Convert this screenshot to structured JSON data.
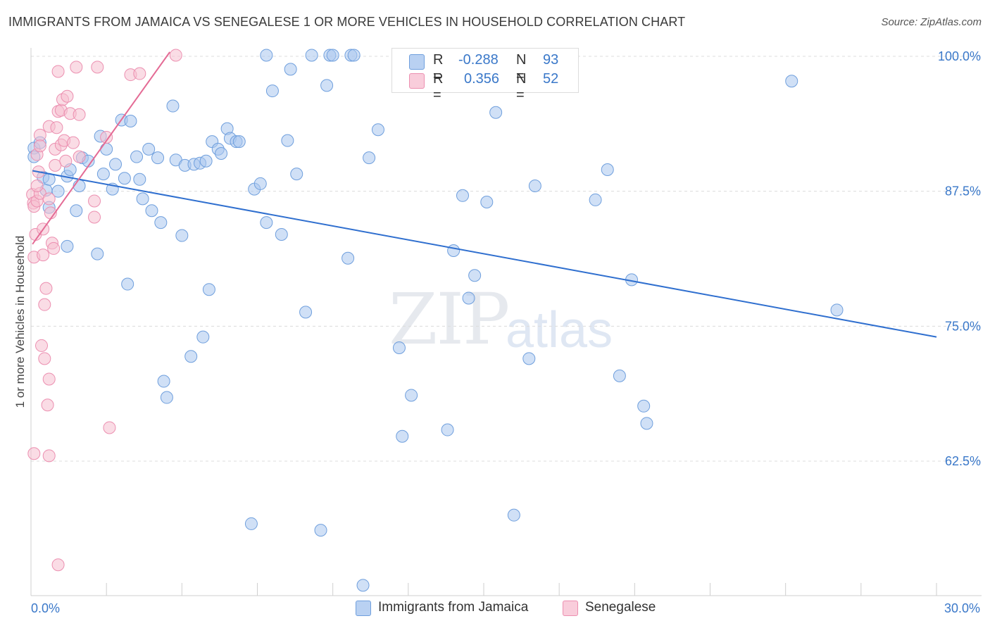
{
  "title": "IMMIGRANTS FROM JAMAICA VS SENEGALESE 1 OR MORE VEHICLES IN HOUSEHOLD CORRELATION CHART",
  "source": "Source: ZipAtlas.com",
  "watermark_zip": "ZIP",
  "watermark_atlas": "atlas",
  "legend": {
    "r_label": "R =",
    "n_label": "N =",
    "series1": {
      "r": "-0.288",
      "n": "93"
    },
    "series2": {
      "r": "0.356",
      "n": "52"
    }
  },
  "colors": {
    "blue_fill": "#a9c6ef",
    "blue_stroke": "#6f9fdd",
    "blue_line": "#2f6fcf",
    "pink_fill": "#f6bfd0",
    "pink_stroke": "#ec8fb0",
    "pink_line": "#e46b95",
    "tick_label": "#3a78c9",
    "grid": "#dcdcdc"
  },
  "chart_data": {
    "type": "scatter",
    "title": "IMMIGRANTS FROM JAMAICA VS SENEGALESE 1 OR MORE VEHICLES IN HOUSEHOLD CORRELATION CHART",
    "xlabel": "",
    "ylabel": "1 or more Vehicles in Household",
    "xlim": [
      0,
      30
    ],
    "ylim": [
      50,
      101.2
    ],
    "x_tick_labels": [
      "0.0%",
      "30.0%"
    ],
    "y_ticks": [
      62.5,
      75.0,
      87.5,
      100.0
    ],
    "y_tick_labels": [
      "62.5%",
      "75.0%",
      "87.5%",
      "100.0%"
    ],
    "grid": true,
    "series": [
      {
        "name": "Immigrants from Jamaica",
        "r": -0.288,
        "n": 93,
        "trend": {
          "x": [
            0.05,
            30.0
          ],
          "y": [
            89.4,
            74.0
          ]
        },
        "points": [
          [
            0.1,
            91.5
          ],
          [
            0.1,
            90.7
          ],
          [
            0.3,
            92.0
          ],
          [
            0.4,
            88.8
          ],
          [
            0.5,
            87.6
          ],
          [
            0.6,
            88.6
          ],
          [
            0.6,
            86.0
          ],
          [
            0.9,
            87.5
          ],
          [
            1.2,
            88.9
          ],
          [
            1.2,
            82.4
          ],
          [
            1.3,
            89.5
          ],
          [
            1.5,
            85.7
          ],
          [
            1.6,
            88.0
          ],
          [
            1.7,
            90.6
          ],
          [
            1.9,
            90.3
          ],
          [
            2.2,
            81.7
          ],
          [
            2.3,
            92.6
          ],
          [
            2.4,
            89.1
          ],
          [
            2.5,
            91.4
          ],
          [
            2.7,
            87.7
          ],
          [
            2.8,
            90.0
          ],
          [
            3.0,
            94.1
          ],
          [
            3.1,
            88.7
          ],
          [
            3.2,
            78.9
          ],
          [
            3.3,
            94.0
          ],
          [
            3.5,
            90.7
          ],
          [
            3.6,
            88.6
          ],
          [
            3.7,
            86.8
          ],
          [
            3.9,
            91.4
          ],
          [
            4.0,
            85.7
          ],
          [
            4.2,
            90.6
          ],
          [
            4.3,
            84.6
          ],
          [
            4.4,
            69.9
          ],
          [
            4.5,
            68.4
          ],
          [
            4.7,
            95.4
          ],
          [
            4.8,
            90.4
          ],
          [
            5.0,
            83.4
          ],
          [
            5.1,
            89.9
          ],
          [
            5.3,
            72.2
          ],
          [
            5.4,
            90.0
          ],
          [
            5.6,
            90.1
          ],
          [
            5.7,
            74.0
          ],
          [
            5.8,
            90.3
          ],
          [
            5.9,
            78.4
          ],
          [
            6.0,
            92.1
          ],
          [
            6.2,
            91.4
          ],
          [
            6.3,
            91.0
          ],
          [
            6.5,
            93.3
          ],
          [
            6.6,
            92.4
          ],
          [
            6.8,
            92.1
          ],
          [
            6.9,
            92.1
          ],
          [
            7.3,
            56.7
          ],
          [
            7.4,
            87.7
          ],
          [
            7.6,
            88.2
          ],
          [
            7.8,
            84.6
          ],
          [
            7.8,
            100.1
          ],
          [
            8.0,
            96.8
          ],
          [
            8.3,
            83.5
          ],
          [
            8.5,
            92.2
          ],
          [
            8.6,
            98.8
          ],
          [
            8.8,
            89.1
          ],
          [
            9.1,
            76.3
          ],
          [
            9.3,
            100.1
          ],
          [
            9.6,
            56.1
          ],
          [
            9.8,
            97.3
          ],
          [
            9.9,
            100.1
          ],
          [
            10.0,
            100.1
          ],
          [
            10.5,
            81.3
          ],
          [
            10.6,
            100.1
          ],
          [
            10.7,
            100.1
          ],
          [
            11.0,
            51.0
          ],
          [
            11.2,
            90.6
          ],
          [
            11.5,
            93.2
          ],
          [
            12.2,
            73.0
          ],
          [
            12.3,
            64.8
          ],
          [
            12.6,
            68.6
          ],
          [
            13.8,
            65.4
          ],
          [
            14.0,
            82.0
          ],
          [
            14.3,
            87.1
          ],
          [
            14.5,
            77.6
          ],
          [
            14.7,
            79.7
          ],
          [
            15.1,
            86.5
          ],
          [
            15.4,
            94.8
          ],
          [
            16.0,
            57.5
          ],
          [
            16.5,
            72.0
          ],
          [
            16.7,
            88.0
          ],
          [
            18.7,
            86.7
          ],
          [
            19.1,
            89.5
          ],
          [
            19.5,
            70.4
          ],
          [
            19.9,
            79.3
          ],
          [
            20.3,
            67.6
          ],
          [
            20.4,
            66.0
          ],
          [
            25.2,
            97.7
          ],
          [
            26.7,
            76.5
          ]
        ]
      },
      {
        "name": "Senegalese",
        "r": 0.356,
        "n": 52,
        "trend": {
          "x": [
            0.05,
            4.6
          ],
          "y": [
            82.6,
            100.4
          ]
        },
        "points": [
          [
            0.05,
            87.2
          ],
          [
            0.08,
            86.4
          ],
          [
            0.1,
            86.1
          ],
          [
            0.1,
            81.4
          ],
          [
            0.1,
            63.2
          ],
          [
            0.15,
            83.5
          ],
          [
            0.2,
            86.6
          ],
          [
            0.2,
            90.9
          ],
          [
            0.25,
            89.3
          ],
          [
            0.3,
            92.7
          ],
          [
            0.3,
            87.3
          ],
          [
            0.3,
            91.7
          ],
          [
            0.35,
            73.2
          ],
          [
            0.4,
            84.0
          ],
          [
            0.4,
            81.6
          ],
          [
            0.45,
            72.0
          ],
          [
            0.45,
            77.0
          ],
          [
            0.5,
            78.5
          ],
          [
            0.55,
            67.7
          ],
          [
            0.6,
            70.1
          ],
          [
            0.6,
            63.0
          ],
          [
            0.6,
            86.8
          ],
          [
            0.6,
            93.5
          ],
          [
            0.65,
            85.5
          ],
          [
            0.7,
            82.7
          ],
          [
            0.75,
            82.2
          ],
          [
            0.8,
            89.9
          ],
          [
            0.8,
            91.4
          ],
          [
            0.85,
            93.4
          ],
          [
            0.9,
            98.6
          ],
          [
            0.9,
            52.9
          ],
          [
            0.9,
            94.9
          ],
          [
            1.0,
            95.0
          ],
          [
            1.0,
            91.8
          ],
          [
            1.05,
            96.0
          ],
          [
            1.1,
            92.2
          ],
          [
            1.15,
            90.3
          ],
          [
            1.2,
            96.3
          ],
          [
            1.3,
            94.7
          ],
          [
            1.4,
            92.0
          ],
          [
            1.5,
            99.0
          ],
          [
            1.6,
            94.6
          ],
          [
            1.6,
            90.7
          ],
          [
            2.1,
            85.1
          ],
          [
            2.1,
            86.6
          ],
          [
            2.2,
            99.0
          ],
          [
            2.5,
            92.5
          ],
          [
            2.6,
            65.6
          ],
          [
            3.3,
            98.3
          ],
          [
            3.6,
            98.4
          ],
          [
            4.8,
            100.1
          ],
          [
            0.2,
            88.0
          ]
        ]
      }
    ]
  }
}
